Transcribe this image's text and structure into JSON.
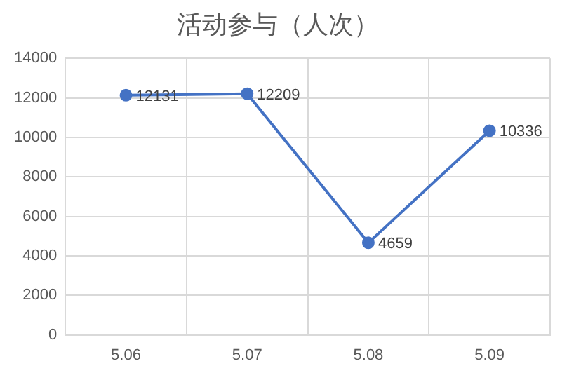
{
  "chart_data": {
    "type": "line",
    "title": "活动参与（人次）",
    "categories": [
      "5.06",
      "5.07",
      "5.08",
      "5.09"
    ],
    "series": [
      {
        "color": "#4472c4",
        "values": [
          12131,
          12209,
          4659,
          10336
        ]
      }
    ],
    "ylim": [
      0,
      14000
    ],
    "yticks": [
      0,
      2000,
      4000,
      6000,
      8000,
      10000,
      12000,
      14000
    ],
    "grid": true,
    "legend": false,
    "marker": "circle",
    "line_style": "solid",
    "data_labels": true
  }
}
